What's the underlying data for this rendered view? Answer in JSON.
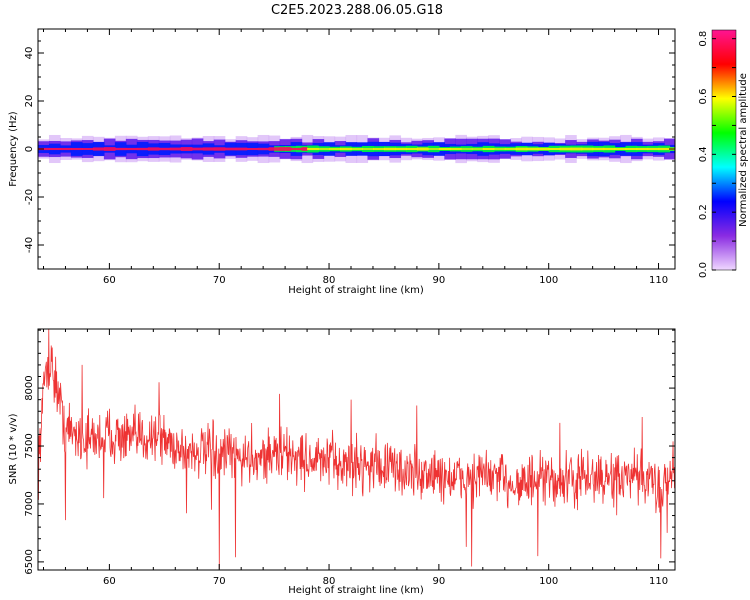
{
  "figure_title": "C2E5.2023.288.06.05.G18",
  "chart_data": [
    {
      "type": "heatmap",
      "xlabel": "Height of straight line (km)",
      "ylabel": "Frequency (Hz)",
      "xlim": [
        53.5,
        111.5
      ],
      "ylim": [
        -50,
        50
      ],
      "x_ticks": [
        60,
        70,
        80,
        90,
        100,
        110
      ],
      "y_ticks": [
        -40,
        -20,
        0,
        20,
        40
      ],
      "grid": false,
      "colorbar": {
        "label": "Normalized spectral amplitude",
        "range": [
          0.0,
          0.83
        ],
        "ticks": [
          "0.0",
          "0.2",
          "0.4",
          "0.6",
          "0.8"
        ],
        "colormap": [
          "#f0d8ff",
          "#8a2be2",
          "#0000ff",
          "#00ffff",
          "#00ff00",
          "#ffff00",
          "#ff0000",
          "#ff1493"
        ]
      },
      "bands": [
        {
          "name": "outer halo",
          "x_range": [
            53.5,
            111.5
          ],
          "freq_half_width": [
            4,
            6
          ],
          "value": 0.05
        },
        {
          "name": "purple band",
          "x_range": [
            53.5,
            111.5
          ],
          "freq_half_width": [
            2.5,
            4.5
          ],
          "value": 0.15
        },
        {
          "name": "blue band",
          "x_range": [
            53.5,
            111.5
          ],
          "freq_half_width": [
            1.5,
            3
          ],
          "value": 0.25
        },
        {
          "name": "cyan/green core",
          "x_range": [
            75,
            111.5
          ],
          "freq_half_width": [
            0.8,
            1.5
          ],
          "value": 0.45
        },
        {
          "name": "red core",
          "x_range": [
            53.5,
            78
          ],
          "freq_half_width": [
            0.4,
            0.8
          ],
          "value": 0.78
        },
        {
          "name": "yellow core",
          "x_range": [
            78,
            111.5
          ],
          "freq_half_width": [
            0.3,
            0.6
          ],
          "value": 0.6
        }
      ]
    },
    {
      "type": "line",
      "xlabel": "Height of straight line (km)",
      "ylabel": "SNR (10 * v/v)",
      "xlim": [
        53.5,
        111.5
      ],
      "ylim": [
        6430,
        8510
      ],
      "x_ticks": [
        60,
        70,
        80,
        90,
        100,
        110
      ],
      "y_ticks": [
        6500,
        7000,
        7500,
        8000
      ],
      "grid": false,
      "series": [
        {
          "color": "#ee3333",
          "x_start": 53.5,
          "x_end": 111.5,
          "noise_amplitude": 230,
          "trend_points": [
            [
              53.5,
              7300
            ],
            [
              54.2,
              8200
            ],
            [
              55,
              8100
            ],
            [
              56,
              7650
            ],
            [
              58,
              7550
            ],
            [
              60,
              7600
            ],
            [
              62,
              7550
            ],
            [
              64,
              7600
            ],
            [
              66,
              7500
            ],
            [
              68,
              7450
            ],
            [
              70,
              7430
            ],
            [
              72,
              7400
            ],
            [
              74,
              7420
            ],
            [
              76,
              7430
            ],
            [
              78,
              7380
            ],
            [
              80,
              7360
            ],
            [
              82,
              7340
            ],
            [
              84,
              7350
            ],
            [
              86,
              7300
            ],
            [
              88,
              7250
            ],
            [
              90,
              7250
            ],
            [
              92,
              7200
            ],
            [
              94,
              7250
            ],
            [
              96,
              7200
            ],
            [
              98,
              7180
            ],
            [
              100,
              7200
            ],
            [
              102,
              7200
            ],
            [
              104,
              7230
            ],
            [
              106,
              7200
            ],
            [
              108,
              7220
            ],
            [
              110,
              7150
            ],
            [
              111.5,
              7300
            ]
          ],
          "spikes": [
            [
              54.5,
              8510
            ],
            [
              54.8,
              8350
            ],
            [
              56.0,
              6860
            ],
            [
              57.5,
              8200
            ],
            [
              59.5,
              7050
            ],
            [
              64.5,
              8050
            ],
            [
              67.0,
              6920
            ],
            [
              69.3,
              6950
            ],
            [
              70.0,
              6440
            ],
            [
              71.5,
              6540
            ],
            [
              75.5,
              7950
            ],
            [
              82.0,
              7900
            ],
            [
              88.0,
              7850
            ],
            [
              92.5,
              6630
            ],
            [
              93.0,
              6460
            ],
            [
              99.0,
              6550
            ],
            [
              101.0,
              7700
            ],
            [
              108.5,
              7750
            ],
            [
              110.2,
              6530
            ],
            [
              110.8,
              6750
            ]
          ]
        }
      ]
    }
  ]
}
